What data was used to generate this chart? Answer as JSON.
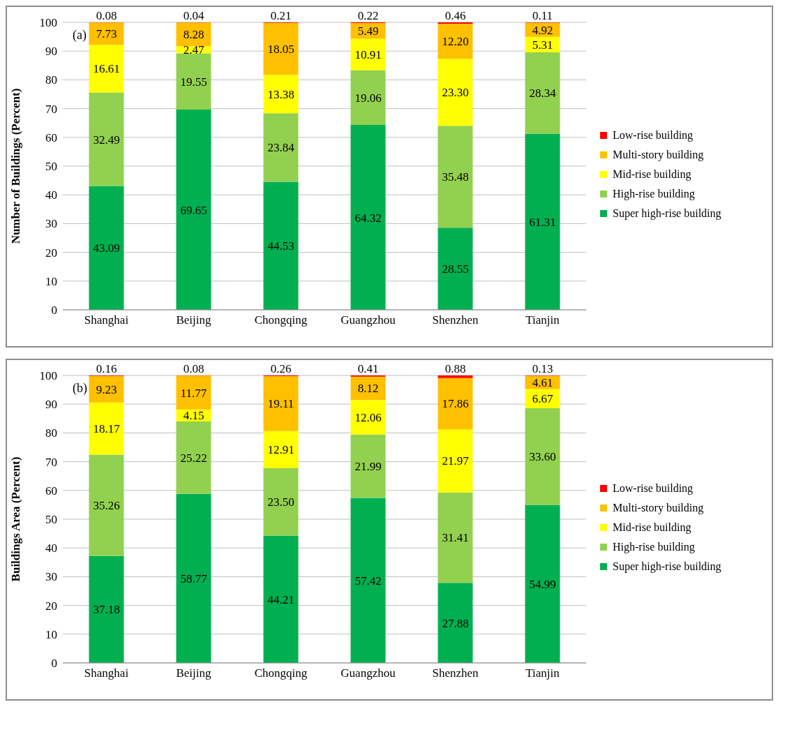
{
  "chart_data": [
    {
      "type": "bar",
      "stacked": true,
      "ylabel": "Number of Buildings (Percent)",
      "annotations": [
        "(a)"
      ],
      "categories": [
        "Shanghai",
        "Beijing",
        "Chongqing",
        "Guangzhou",
        "Shenzhen",
        "Tianjin"
      ],
      "ylim": [
        0,
        100
      ],
      "yticks": [
        0,
        10,
        20,
        30,
        40,
        50,
        60,
        70,
        80,
        90,
        100
      ],
      "grid": "y",
      "legend": "right",
      "series": [
        {
          "name": "Super high-rise building",
          "color": "#00b050",
          "values": [
            43.09,
            69.65,
            44.53,
            64.32,
            28.55,
            61.31
          ],
          "value_labels": [
            "43.09",
            "69.65",
            "44.53",
            "64.32",
            "28.55",
            "61.31"
          ]
        },
        {
          "name": "High-rise building",
          "color": "#92d050",
          "values": [
            32.49,
            19.55,
            23.84,
            19.06,
            35.48,
            28.34
          ],
          "value_labels": [
            "32.49",
            "19.55",
            "23.84",
            "19.06",
            "35.48",
            "28.34"
          ]
        },
        {
          "name": "Mid-rise building",
          "color": "#ffff00",
          "values": [
            16.61,
            2.47,
            13.38,
            10.91,
            23.3,
            5.31
          ],
          "value_labels": [
            "16.61",
            "2.47",
            "13.38",
            "10.91",
            "23.30",
            "5.31"
          ]
        },
        {
          "name": "Multi-story building",
          "color": "#ffc000",
          "values": [
            7.73,
            8.28,
            18.05,
            5.49,
            12.2,
            4.92
          ],
          "value_labels": [
            "7.73",
            "8.28",
            "18.05",
            "5.49",
            "12.20",
            "4.92"
          ]
        },
        {
          "name": "Low-rise building",
          "color": "#ff0000",
          "values": [
            0.08,
            0.04,
            0.21,
            0.22,
            0.46,
            0.11
          ],
          "value_labels": [
            "0.08",
            "0.04",
            "0.21",
            "0.22",
            "0.46",
            "0.11"
          ]
        }
      ]
    },
    {
      "type": "bar",
      "stacked": true,
      "ylabel": "Buildings Area (Percent)",
      "annotations": [
        "(b)"
      ],
      "categories": [
        "Shanghai",
        "Beijing",
        "Chongqing",
        "Guangzhou",
        "Shenzhen",
        "Tianjin"
      ],
      "ylim": [
        0,
        100
      ],
      "yticks": [
        0,
        10,
        20,
        30,
        40,
        50,
        60,
        70,
        80,
        90,
        100
      ],
      "grid": "y",
      "legend": "right",
      "series": [
        {
          "name": "Super high-rise building",
          "color": "#00b050",
          "values": [
            37.18,
            58.77,
            44.21,
            57.42,
            27.88,
            54.99
          ],
          "value_labels": [
            "37.18",
            "58.77",
            "44.21",
            "57.42",
            "27.88",
            "54.99"
          ]
        },
        {
          "name": "High-rise building",
          "color": "#92d050",
          "values": [
            35.26,
            25.22,
            23.5,
            21.99,
            31.41,
            33.6
          ],
          "value_labels": [
            "35.26",
            "25.22",
            "23.50",
            "21.99",
            "31.41",
            "33.60"
          ]
        },
        {
          "name": "Mid-rise building",
          "color": "#ffff00",
          "values": [
            18.17,
            4.15,
            12.91,
            12.06,
            21.97,
            6.67
          ],
          "value_labels": [
            "18.17",
            "4.15",
            "12.91",
            "12.06",
            "21.97",
            "6.67"
          ]
        },
        {
          "name": "Multi-story building",
          "color": "#ffc000",
          "values": [
            9.23,
            11.77,
            19.11,
            8.12,
            17.86,
            4.61
          ],
          "value_labels": [
            "9.23",
            "11.77",
            "19.11",
            "8.12",
            "17.86",
            "4.61"
          ]
        },
        {
          "name": "Low-rise building",
          "color": "#ff0000",
          "values": [
            0.16,
            0.08,
            0.26,
            0.41,
            0.88,
            0.13
          ],
          "value_labels": [
            "0.16",
            "0.08",
            "0.26",
            "0.41",
            "0.88",
            "0.13"
          ]
        }
      ]
    }
  ]
}
